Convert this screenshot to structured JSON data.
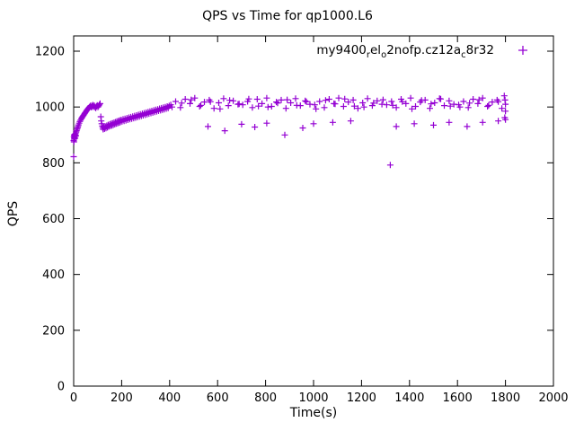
{
  "page": {
    "title": "QPS vs Time for qp1000.L6"
  },
  "legend": {
    "full_label": "my9400_rel_o2nofp.cz12a_c8r32",
    "parts": [
      {
        "text": "my9400",
        "sub": false
      },
      {
        "text": "r",
        "sub": true
      },
      {
        "text": "el",
        "sub": false
      },
      {
        "text": "o",
        "sub": true
      },
      {
        "text": "2nofp.cz12a",
        "sub": false
      },
      {
        "text": "c",
        "sub": true
      },
      {
        "text": "8r32",
        "sub": false
      }
    ],
    "marker": "plus"
  },
  "chart_data": {
    "type": "scatter",
    "title": "QPS vs Time for qp1000.L6",
    "xlabel": "Time(s)",
    "ylabel": "QPS",
    "xlim": [
      0,
      2000
    ],
    "ylim": [
      0,
      1200
    ],
    "xticks": [
      0,
      200,
      400,
      600,
      800,
      1000,
      1200,
      1400,
      1600,
      1800,
      2000
    ],
    "yticks": [
      0,
      200,
      400,
      600,
      800,
      1000,
      1200
    ],
    "grid": false,
    "legend_position": "top-right-inside",
    "marker": "plus",
    "color": "#9400d3",
    "series": [
      {
        "name": "my9400_rel_o2nofp.cz12a_c8r32",
        "points": [
          [
            0,
            822
          ],
          [
            0,
            880
          ],
          [
            1,
            875
          ],
          [
            1,
            893
          ],
          [
            2,
            885
          ],
          [
            2,
            900
          ],
          [
            3,
            890
          ],
          [
            4,
            896
          ],
          [
            5,
            902
          ],
          [
            6,
            888
          ],
          [
            7,
            895
          ],
          [
            8,
            905
          ],
          [
            9,
            898
          ],
          [
            10,
            910
          ],
          [
            12,
            915
          ],
          [
            14,
            920
          ],
          [
            16,
            925
          ],
          [
            18,
            930
          ],
          [
            20,
            936
          ],
          [
            23,
            942
          ],
          [
            26,
            948
          ],
          [
            29,
            953
          ],
          [
            32,
            958
          ],
          [
            35,
            962
          ],
          [
            38,
            966
          ],
          [
            41,
            970
          ],
          [
            44,
            974
          ],
          [
            47,
            978
          ],
          [
            50,
            982
          ],
          [
            53,
            986
          ],
          [
            56,
            990
          ],
          [
            59,
            993
          ],
          [
            62,
            996
          ],
          [
            65,
            999
          ],
          [
            68,
            1002
          ],
          [
            71,
            1005
          ],
          [
            74,
            999
          ],
          [
            77,
            1003
          ],
          [
            80,
            1007
          ],
          [
            83,
            1001
          ],
          [
            86,
            1005
          ],
          [
            89,
            1000
          ],
          [
            92,
            996
          ],
          [
            95,
            1002
          ],
          [
            98,
            1006
          ],
          [
            101,
            1000
          ],
          [
            104,
            1004
          ],
          [
            107,
            1008
          ],
          [
            110,
            1012
          ],
          [
            113,
            965
          ],
          [
            115,
            950
          ],
          [
            117,
            940
          ],
          [
            119,
            932
          ],
          [
            121,
            926
          ],
          [
            123,
            920
          ],
          [
            126,
            928
          ],
          [
            129,
            922
          ],
          [
            132,
            930
          ],
          [
            135,
            924
          ],
          [
            138,
            933
          ],
          [
            141,
            927
          ],
          [
            144,
            936
          ],
          [
            147,
            930
          ],
          [
            150,
            938
          ],
          [
            153,
            932
          ],
          [
            156,
            940
          ],
          [
            159,
            934
          ],
          [
            162,
            942
          ],
          [
            165,
            936
          ],
          [
            168,
            944
          ],
          [
            171,
            938
          ],
          [
            174,
            946
          ],
          [
            177,
            940
          ],
          [
            180,
            948
          ],
          [
            183,
            942
          ],
          [
            186,
            950
          ],
          [
            189,
            944
          ],
          [
            192,
            952
          ],
          [
            195,
            946
          ],
          [
            198,
            954
          ],
          [
            202,
            948
          ],
          [
            206,
            956
          ],
          [
            210,
            950
          ],
          [
            214,
            958
          ],
          [
            218,
            952
          ],
          [
            222,
            960
          ],
          [
            226,
            954
          ],
          [
            230,
            962
          ],
          [
            234,
            956
          ],
          [
            238,
            964
          ],
          [
            242,
            958
          ],
          [
            246,
            966
          ],
          [
            250,
            960
          ],
          [
            254,
            968
          ],
          [
            258,
            962
          ],
          [
            262,
            970
          ],
          [
            266,
            964
          ],
          [
            270,
            972
          ],
          [
            274,
            966
          ],
          [
            278,
            974
          ],
          [
            282,
            968
          ],
          [
            286,
            976
          ],
          [
            290,
            970
          ],
          [
            294,
            978
          ],
          [
            298,
            972
          ],
          [
            302,
            980
          ],
          [
            306,
            974
          ],
          [
            310,
            982
          ],
          [
            314,
            976
          ],
          [
            318,
            984
          ],
          [
            322,
            978
          ],
          [
            326,
            986
          ],
          [
            330,
            980
          ],
          [
            334,
            988
          ],
          [
            338,
            982
          ],
          [
            342,
            990
          ],
          [
            346,
            984
          ],
          [
            350,
            992
          ],
          [
            354,
            986
          ],
          [
            358,
            994
          ],
          [
            362,
            988
          ],
          [
            366,
            996
          ],
          [
            370,
            990
          ],
          [
            374,
            998
          ],
          [
            378,
            992
          ],
          [
            382,
            1000
          ],
          [
            386,
            994
          ],
          [
            390,
            1002
          ],
          [
            394,
            996
          ],
          [
            398,
            1004
          ],
          [
            405,
            1008
          ],
          [
            425,
            1020
          ],
          [
            445,
            998
          ],
          [
            465,
            1028
          ],
          [
            485,
            1012
          ],
          [
            505,
            1032
          ],
          [
            525,
            1002
          ],
          [
            545,
            1018
          ],
          [
            565,
            1025
          ],
          [
            585,
            995
          ],
          [
            605,
            1015
          ],
          [
            625,
            1030
          ],
          [
            645,
            1005
          ],
          [
            665,
            1022
          ],
          [
            685,
            1010
          ],
          [
            705,
            1008
          ],
          [
            725,
            1020
          ],
          [
            745,
            998
          ],
          [
            765,
            1028
          ],
          [
            785,
            1012
          ],
          [
            805,
            1032
          ],
          [
            825,
            1002
          ],
          [
            845,
            1018
          ],
          [
            865,
            1025
          ],
          [
            885,
            995
          ],
          [
            905,
            1015
          ],
          [
            925,
            1030
          ],
          [
            945,
            1005
          ],
          [
            965,
            1022
          ],
          [
            985,
            1010
          ],
          [
            1005,
            1008
          ],
          [
            1025,
            1020
          ],
          [
            1045,
            998
          ],
          [
            1065,
            1028
          ],
          [
            1085,
            1012
          ],
          [
            1105,
            1032
          ],
          [
            1125,
            1002
          ],
          [
            1145,
            1018
          ],
          [
            1165,
            1025
          ],
          [
            1185,
            995
          ],
          [
            1205,
            1015
          ],
          [
            1225,
            1030
          ],
          [
            1245,
            1005
          ],
          [
            1265,
            1022
          ],
          [
            1285,
            1010
          ],
          [
            1305,
            1008
          ],
          [
            1325,
            1020
          ],
          [
            1345,
            998
          ],
          [
            1365,
            1028
          ],
          [
            1385,
            1012
          ],
          [
            1405,
            1032
          ],
          [
            1425,
            1002
          ],
          [
            1445,
            1018
          ],
          [
            1465,
            1025
          ],
          [
            1485,
            995
          ],
          [
            1505,
            1015
          ],
          [
            1525,
            1030
          ],
          [
            1545,
            1005
          ],
          [
            1565,
            1022
          ],
          [
            1585,
            1010
          ],
          [
            1605,
            1008
          ],
          [
            1625,
            1020
          ],
          [
            1645,
            998
          ],
          [
            1665,
            1028
          ],
          [
            1685,
            1012
          ],
          [
            1705,
            1032
          ],
          [
            1725,
            1002
          ],
          [
            1745,
            1018
          ],
          [
            1765,
            1025
          ],
          [
            1785,
            995
          ],
          [
            410,
            1000
          ],
          [
            450,
            1014
          ],
          [
            490,
            1026
          ],
          [
            530,
            1006
          ],
          [
            570,
            1019
          ],
          [
            610,
            993
          ],
          [
            650,
            1024
          ],
          [
            690,
            1011
          ],
          [
            730,
            1029
          ],
          [
            770,
            1003
          ],
          [
            810,
            1000
          ],
          [
            850,
            1014
          ],
          [
            890,
            1026
          ],
          [
            930,
            1006
          ],
          [
            970,
            1019
          ],
          [
            1010,
            993
          ],
          [
            1050,
            1024
          ],
          [
            1090,
            1011
          ],
          [
            1130,
            1029
          ],
          [
            1170,
            1003
          ],
          [
            1210,
            1000
          ],
          [
            1250,
            1014
          ],
          [
            1290,
            1026
          ],
          [
            1330,
            1006
          ],
          [
            1370,
            1019
          ],
          [
            1410,
            993
          ],
          [
            1450,
            1024
          ],
          [
            1490,
            1011
          ],
          [
            1530,
            1029
          ],
          [
            1570,
            1003
          ],
          [
            1610,
            1000
          ],
          [
            1650,
            1014
          ],
          [
            1690,
            1026
          ],
          [
            1730,
            1006
          ],
          [
            1770,
            1019
          ],
          [
            560,
            930
          ],
          [
            630,
            915
          ],
          [
            700,
            938
          ],
          [
            755,
            928
          ],
          [
            805,
            942
          ],
          [
            880,
            900
          ],
          [
            955,
            925
          ],
          [
            1000,
            940
          ],
          [
            1080,
            945
          ],
          [
            1155,
            950
          ],
          [
            1320,
            792
          ],
          [
            1345,
            930
          ],
          [
            1420,
            940
          ],
          [
            1500,
            935
          ],
          [
            1565,
            945
          ],
          [
            1640,
            930
          ],
          [
            1705,
            945
          ],
          [
            1770,
            950
          ],
          [
            1795,
            1040
          ],
          [
            1798,
            1025
          ],
          [
            1800,
            1010
          ],
          [
            1800,
            985
          ],
          [
            1797,
            962
          ],
          [
            1800,
            955
          ]
        ]
      }
    ]
  }
}
